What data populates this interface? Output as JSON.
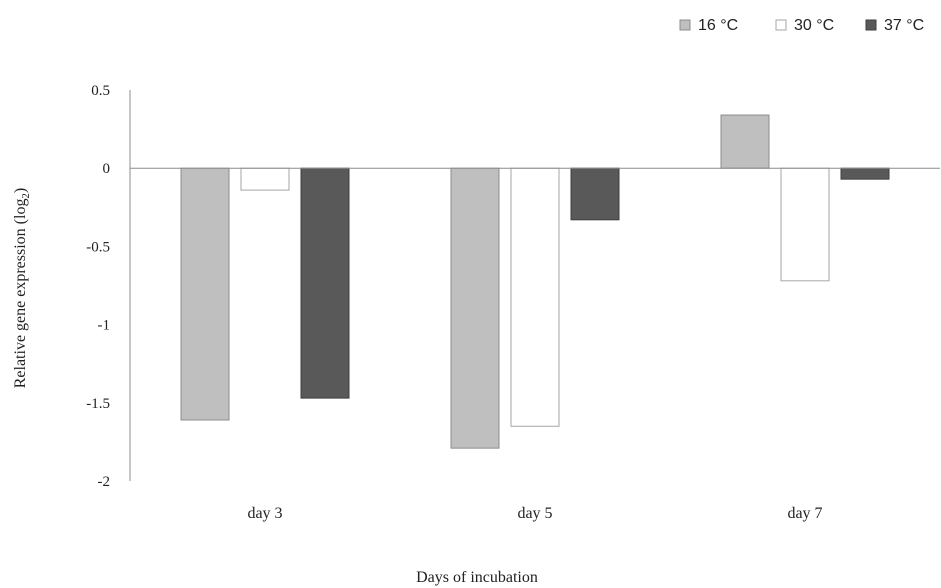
{
  "chart_data": {
    "type": "bar",
    "title": "",
    "xlabel": "Days of incubation",
    "ylabel": "Relative gene expression (log",
    "ylabel_subscript": "2",
    "ylabel_suffix": ")",
    "categories": [
      "day 3",
      "day 5",
      "day 7"
    ],
    "series": [
      {
        "name": "16 °C",
        "values": [
          -1.61,
          -1.79,
          0.34
        ],
        "color": "#bfbfbf",
        "stroke": "#8c8c8c"
      },
      {
        "name": "30 °C",
        "values": [
          -0.14,
          -1.65,
          -0.72
        ],
        "color": "#ffffff",
        "stroke": "#a6a6a6"
      },
      {
        "name": "37 °C",
        "values": [
          -1.47,
          -0.33,
          -0.07
        ],
        "color": "#595959",
        "stroke": "#3f3f3f"
      }
    ],
    "ylim": [
      -2,
      0.5
    ],
    "yticks": [
      0.5,
      0,
      -0.5,
      -1,
      -1.5,
      -2
    ],
    "ytick_labels": [
      "0.5",
      "0",
      "-0.5",
      "-1",
      "-1.5",
      "-2"
    ],
    "grid": false,
    "legend_position": "top-right"
  }
}
